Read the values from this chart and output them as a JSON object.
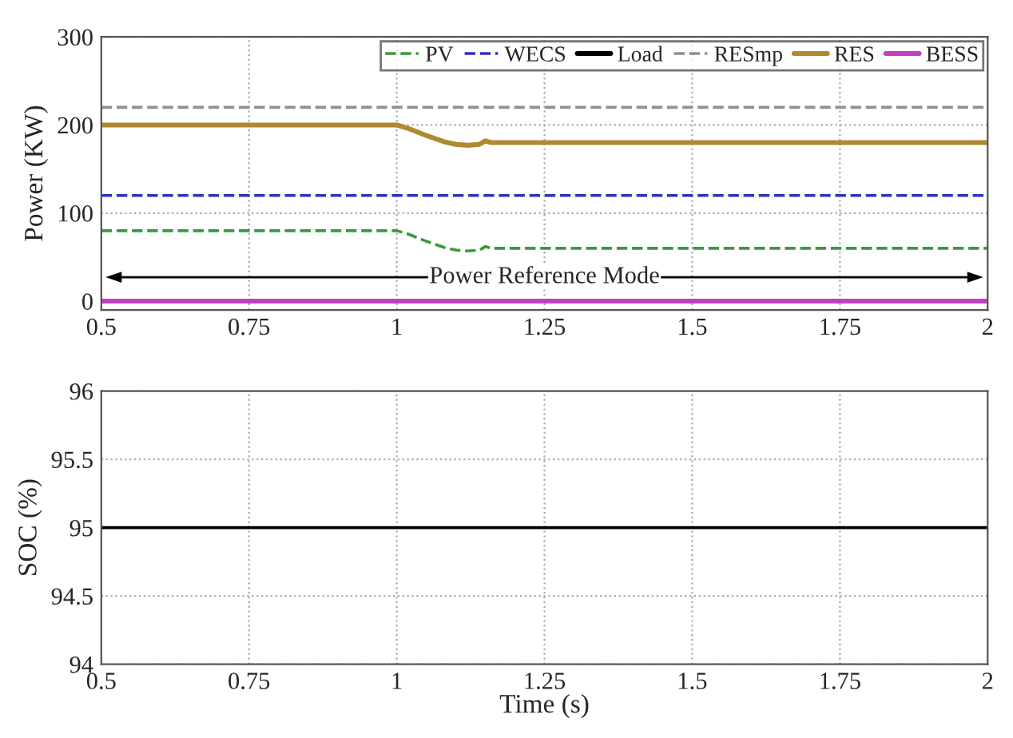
{
  "chart_data": [
    {
      "type": "line",
      "ylabel": "Power (KW)",
      "x": [
        0.5,
        0.75,
        1.0,
        1.02,
        1.05,
        1.08,
        1.1,
        1.12,
        1.14,
        1.15,
        1.16,
        1.2,
        1.5,
        1.75,
        2.0
      ],
      "series": [
        {
          "name": "PV",
          "color": "#3a9a3a",
          "line_style": "dashed",
          "values": [
            80,
            80,
            80,
            76,
            68,
            61,
            58,
            57,
            58,
            62,
            60,
            60,
            60,
            60,
            60
          ]
        },
        {
          "name": "WECS",
          "color": "#3030c0",
          "line_style": "dashed",
          "values": [
            120,
            120,
            120,
            120,
            120,
            120,
            120,
            120,
            120,
            120,
            120,
            120,
            120,
            120,
            120
          ]
        },
        {
          "name": "Load",
          "color": "#000000",
          "line_style": "solid",
          "values": [
            null,
            null,
            null,
            null,
            null,
            null,
            null,
            null,
            null,
            null,
            null,
            null,
            null,
            null,
            null
          ]
        },
        {
          "name": "RESmp",
          "color": "#909090",
          "line_style": "dashed",
          "values": [
            220,
            220,
            220,
            220,
            220,
            220,
            220,
            220,
            220,
            220,
            220,
            220,
            220,
            220,
            220
          ]
        },
        {
          "name": "RES",
          "color": "#b08a30",
          "line_style": "solid",
          "values": [
            200,
            200,
            200,
            196,
            188,
            181,
            178,
            177,
            178,
            182,
            180,
            180,
            180,
            180,
            180
          ]
        },
        {
          "name": "BESS",
          "color": "#c040c0",
          "line_style": "solid",
          "values": [
            0,
            0,
            0,
            0,
            0,
            0,
            0,
            0,
            0,
            0,
            0,
            0,
            0,
            0,
            0
          ]
        }
      ],
      "xlim": [
        0.5,
        2
      ],
      "xticks": [
        0.5,
        0.75,
        1,
        1.25,
        1.5,
        1.75,
        2
      ],
      "ylim": [
        -10,
        300
      ],
      "yticks": [
        0,
        100,
        200,
        300
      ],
      "grid": true,
      "legend": "top right",
      "annotations": [
        "Power Reference Mode"
      ]
    },
    {
      "type": "line",
      "ylabel": "SOC (%)",
      "xlabel": "Time (s)",
      "x": [
        0.5,
        2.0
      ],
      "series": [
        {
          "color": "#000000",
          "line_style": "solid",
          "values": [
            95,
            95
          ]
        }
      ],
      "xlim": [
        0.5,
        2
      ],
      "xticks": [
        0.5,
        0.75,
        1,
        1.25,
        1.5,
        1.75,
        2
      ],
      "ylim": [
        94,
        96
      ],
      "yticks": [
        94,
        94.5,
        95,
        95.5,
        96
      ],
      "grid": true
    }
  ]
}
